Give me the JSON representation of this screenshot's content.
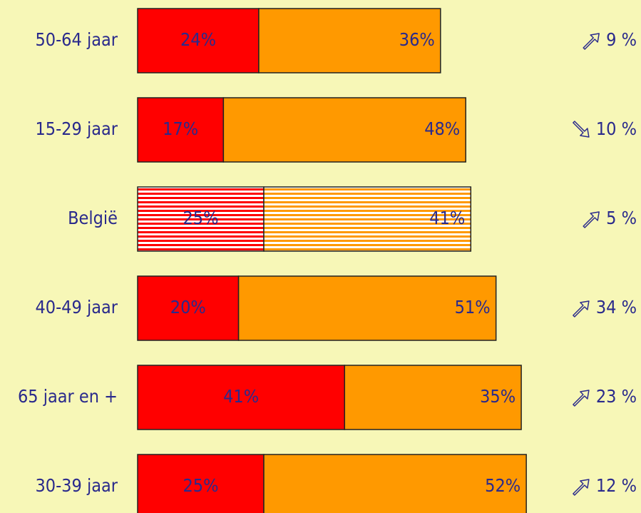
{
  "chart_data": {
    "type": "stacked-bar-horizontal",
    "categories": [
      "50-64 jaar",
      "15-29 jaar",
      "België",
      "40-49 jaar",
      "65 jaar en +",
      "30-39 jaar"
    ],
    "series": [
      {
        "color": "#ff0000",
        "values": [
          24,
          17,
          25,
          20,
          41,
          25
        ],
        "value_labels": [
          "24%",
          "17%",
          "25%",
          "20%",
          "41%",
          "25%"
        ]
      },
      {
        "color": "#ff9900",
        "values": [
          36,
          48,
          41,
          51,
          35,
          52
        ],
        "value_labels": [
          "36%",
          "48%",
          "41%",
          "51%",
          "35%",
          "52%"
        ]
      }
    ],
    "hatched": [
      false,
      false,
      true,
      false,
      false,
      false
    ],
    "changes": [
      "9 %",
      "10 %",
      "5 %",
      "34 %",
      "23 %",
      "12 %"
    ],
    "change_direction": [
      "up",
      "down",
      "up",
      "up",
      "up",
      "up"
    ]
  }
}
